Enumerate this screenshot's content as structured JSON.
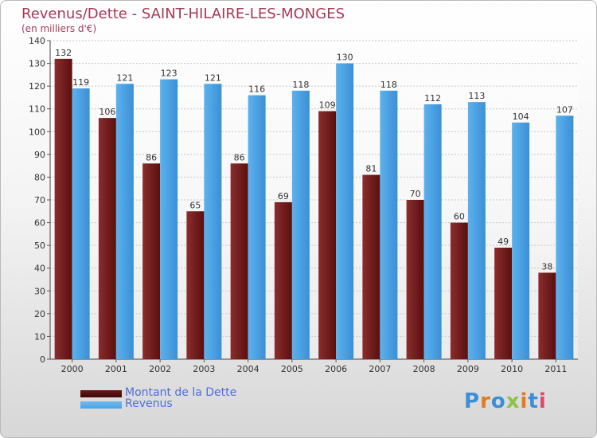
{
  "chart_data": {
    "type": "bar",
    "title": "Revenus/Dette - SAINT-HILAIRE-LES-MONGES",
    "subtitle": "(en milliers d'€)",
    "categories": [
      "2000",
      "2001",
      "2002",
      "2003",
      "2004",
      "2005",
      "2006",
      "2007",
      "2008",
      "2009",
      "2010",
      "2011"
    ],
    "series": [
      {
        "name": "Montant de la Dette",
        "values": [
          132,
          106,
          86,
          65,
          86,
          69,
          109,
          81,
          70,
          60,
          49,
          38
        ],
        "color": "#6b1a1a"
      },
      {
        "name": "Revenus",
        "values": [
          119,
          121,
          123,
          121,
          116,
          118,
          130,
          118,
          112,
          113,
          104,
          107
        ],
        "color": "#4aa3e6"
      }
    ],
    "ylim": [
      0,
      140
    ],
    "yticks": [
      0,
      10,
      20,
      30,
      40,
      50,
      60,
      70,
      80,
      90,
      100,
      110,
      120,
      130,
      140
    ],
    "grid": true,
    "legend": "bottom-left"
  },
  "legend": {
    "items": [
      {
        "label": "Montant de la Dette",
        "color": "#6b1a1a"
      },
      {
        "label": "Revenus",
        "color": "#4aa3e6"
      }
    ]
  },
  "logo": {
    "letters": [
      "P",
      "r",
      "o",
      "x",
      "i",
      "t",
      "i"
    ],
    "colors": [
      "#3a8fd6",
      "#e07b22",
      "#3a8fd6",
      "#8bc34a",
      "#e07b22",
      "#3a8fd6",
      "#d84b6b"
    ]
  }
}
